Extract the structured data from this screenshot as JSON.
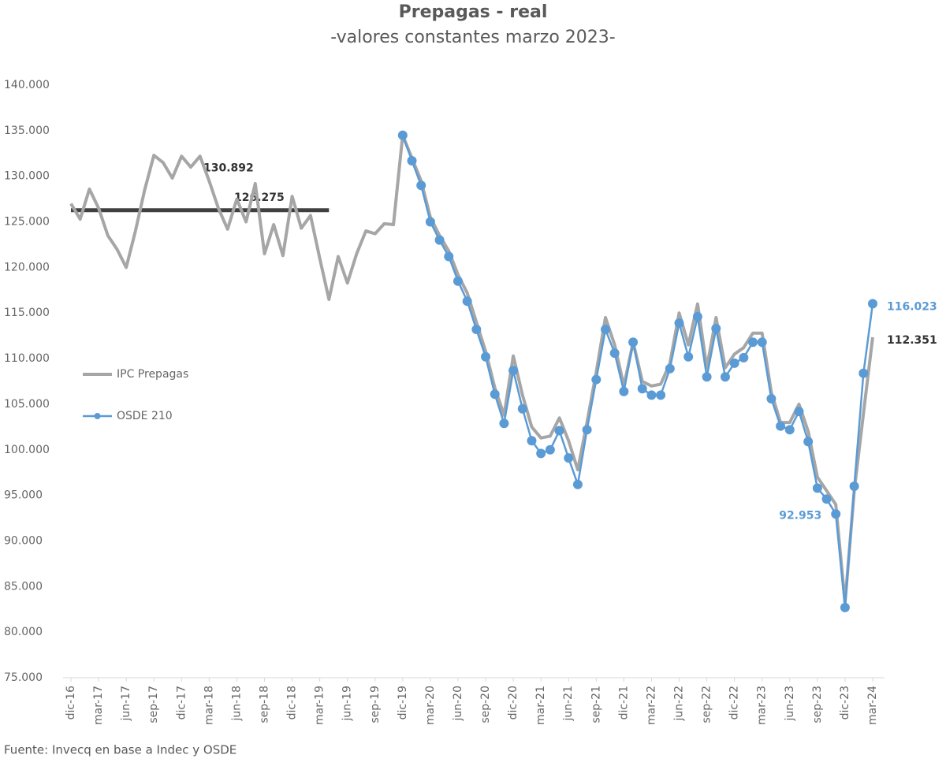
{
  "chart_data": {
    "type": "line",
    "title": "Prepagas - real",
    "subtitle": "-valores constantes marzo 2023-",
    "source": "Fuente: Invecq en base a Indec y OSDE",
    "categories": [
      "dic-16",
      null,
      null,
      "mar-17",
      null,
      null,
      "jun-17",
      null,
      null,
      "sep-17",
      null,
      null,
      "dic-17",
      null,
      null,
      "mar-18",
      null,
      null,
      "jun-18",
      null,
      null,
      "sep-18",
      null,
      null,
      "dic-18",
      null,
      null,
      "mar-19",
      null,
      null,
      "jun-19",
      null,
      null,
      "sep-19",
      null,
      null,
      "dic-19",
      null,
      null,
      "mar-20",
      null,
      null,
      "jun-20",
      null,
      null,
      "sep-20",
      null,
      null,
      "dic-20",
      null,
      null,
      "mar-21",
      null,
      null,
      "jun-21",
      null,
      null,
      "sep-21",
      null,
      null,
      "dic-21",
      null,
      null,
      "mar-22",
      null,
      null,
      "jun-22",
      null,
      null,
      "sep-22",
      null,
      null,
      "dic-22",
      null,
      null,
      "mar-23",
      null,
      null,
      "jun-23",
      null,
      null,
      "sep-23",
      null,
      null,
      "dic-23",
      null,
      null,
      "mar-24"
    ],
    "series": [
      {
        "name": "IPC Prepagas",
        "color": "#a6a6a6",
        "values": [
          127000,
          125300,
          128600,
          126500,
          123500,
          122000,
          120000,
          124000,
          128500,
          132300,
          131500,
          129800,
          132200,
          131000,
          132200,
          129500,
          126500,
          124200,
          127500,
          125000,
          129200,
          121500,
          124700,
          121300,
          127800,
          124300,
          125700,
          121000,
          116500,
          121200,
          118300,
          121500,
          124000,
          123700,
          124800,
          124700,
          134500,
          132000,
          129500,
          125500,
          123500,
          121800,
          119200,
          117200,
          114000,
          110800,
          106800,
          103800,
          110300,
          106000,
          102500,
          101300,
          101500,
          103500,
          101000,
          97800,
          103000,
          108500,
          114500,
          111500,
          107000,
          111800,
          107500,
          107000,
          107200,
          109500,
          115000,
          111500,
          116000,
          109000,
          114500,
          109000,
          110500,
          111200,
          112800,
          112800,
          106300,
          103000,
          103000,
          105000,
          102000,
          97000,
          95500,
          94000,
          83200,
          95500,
          104000,
          112351
        ],
        "value_labels": [
          null,
          null,
          null,
          null,
          null,
          null,
          null,
          null,
          null,
          null,
          null,
          null,
          null,
          null,
          null,
          null,
          null,
          null,
          null,
          null,
          null,
          null,
          null,
          null,
          null,
          null,
          null,
          null,
          null,
          null,
          null,
          null,
          null,
          null,
          null,
          null,
          null,
          null,
          null,
          null,
          null,
          null,
          null,
          null,
          null,
          null,
          null,
          null,
          null,
          null,
          null,
          null,
          null,
          null,
          null,
          null,
          null,
          null,
          null,
          null,
          null,
          null,
          null,
          null,
          null,
          null,
          null,
          null,
          null,
          null,
          null,
          null,
          null,
          null,
          null,
          null,
          null,
          null,
          null,
          null,
          null,
          null,
          null,
          null,
          null,
          null,
          null,
          "112.351"
        ]
      },
      {
        "name": "OSDE 210",
        "color": "#5b9bd5",
        "values": [
          null,
          null,
          null,
          null,
          null,
          null,
          null,
          null,
          null,
          null,
          null,
          null,
          null,
          null,
          null,
          null,
          null,
          null,
          null,
          null,
          null,
          null,
          null,
          null,
          null,
          null,
          null,
          null,
          null,
          null,
          null,
          null,
          null,
          null,
          null,
          null,
          134500,
          131700,
          129000,
          125000,
          123000,
          121200,
          118500,
          116300,
          113200,
          110200,
          106100,
          102900,
          108700,
          104500,
          101000,
          99600,
          100000,
          102100,
          99100,
          96200,
          102200,
          107700,
          113200,
          110600,
          106400,
          111800,
          106700,
          106000,
          106000,
          108900,
          113900,
          110200,
          114600,
          108000,
          113300,
          108000,
          109500,
          110100,
          111800,
          111800,
          105600,
          102600,
          102200,
          104200,
          100900,
          95800,
          94600,
          92953,
          82700,
          96000,
          108400,
          116023
        ],
        "value_labels": [
          null,
          null,
          null,
          null,
          null,
          null,
          null,
          null,
          null,
          null,
          null,
          null,
          null,
          null,
          null,
          null,
          null,
          null,
          null,
          null,
          null,
          null,
          null,
          null,
          null,
          null,
          null,
          null,
          null,
          null,
          null,
          null,
          null,
          null,
          null,
          null,
          null,
          null,
          null,
          null,
          null,
          null,
          null,
          null,
          null,
          null,
          null,
          null,
          null,
          null,
          null,
          null,
          null,
          null,
          null,
          null,
          null,
          null,
          null,
          null,
          null,
          null,
          null,
          null,
          null,
          null,
          null,
          null,
          null,
          null,
          null,
          null,
          null,
          null,
          null,
          null,
          null,
          null,
          null,
          null,
          null,
          null,
          null,
          "92.953",
          null,
          null,
          null,
          "116.023"
        ]
      }
    ],
    "reference_line": {
      "value": 126275,
      "label": "126.275",
      "color": "#404040",
      "x_range": [
        0,
        28
      ]
    },
    "annotations": [
      {
        "label": "130.892",
        "value": 130892
      }
    ],
    "ylim": [
      75000,
      140000
    ],
    "yticks": [
      {
        "value": 75000,
        "label": "75.000"
      },
      {
        "value": 80000,
        "label": "80.000"
      },
      {
        "value": 85000,
        "label": "85.000"
      },
      {
        "value": 90000,
        "label": "90.000"
      },
      {
        "value": 95000,
        "label": "95.000"
      },
      {
        "value": 100000,
        "label": "100.000"
      },
      {
        "value": 105000,
        "label": "105.000"
      },
      {
        "value": 110000,
        "label": "110.000"
      },
      {
        "value": 115000,
        "label": "115.000"
      },
      {
        "value": 120000,
        "label": "120.000"
      },
      {
        "value": 125000,
        "label": "125.000"
      },
      {
        "value": 130000,
        "label": "130.000"
      },
      {
        "value": 135000,
        "label": "135.000"
      },
      {
        "value": 140000,
        "label": "140.000"
      }
    ],
    "grid": false
  }
}
